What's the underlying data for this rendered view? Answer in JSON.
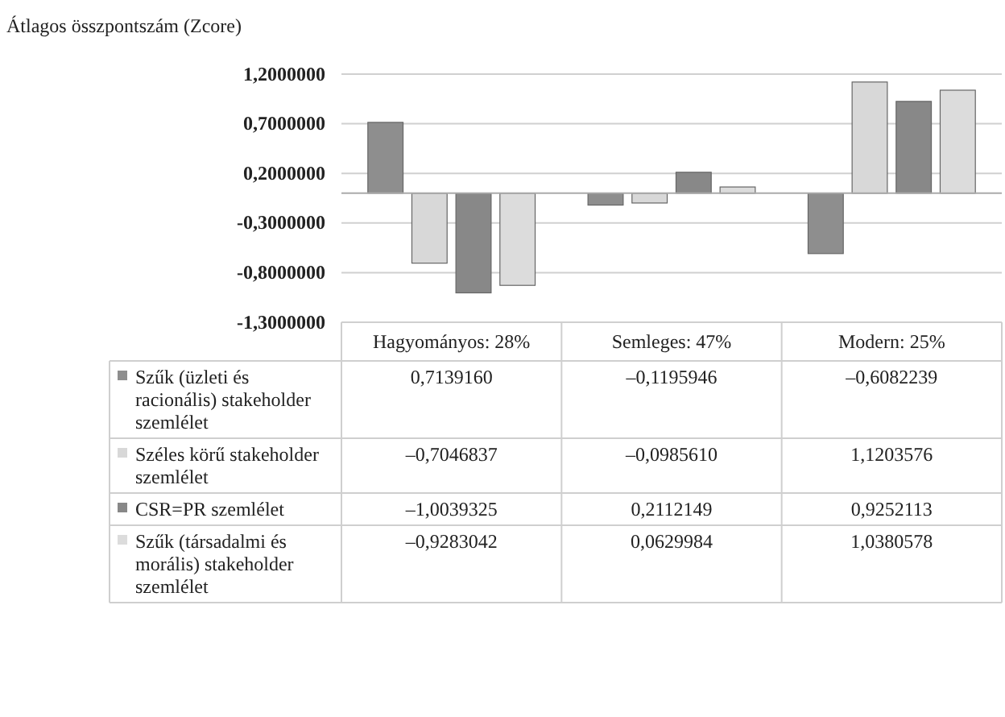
{
  "chart_data": {
    "type": "bar",
    "ylabel": "Átlagos összpontszám (Zcore)",
    "categories": [
      "Hagyományos: 28%",
      "Semleges: 47%",
      "Modern: 25%"
    ],
    "series": [
      {
        "name": "Szűk (üzleti és racionális) stakeholder szemlélet",
        "color": "#8e8e8e",
        "values": [
          0.713916,
          -0.1195946,
          -0.6082239
        ],
        "value_labels": [
          "0,7139160",
          "–0,1195946",
          "–0,6082239"
        ]
      },
      {
        "name": "Széles körű stakeholder szemlélet",
        "color": "#d8d8d8",
        "values": [
          -0.7046837,
          -0.098561,
          1.1203576
        ],
        "value_labels": [
          "–0,7046837",
          "–0,0985610",
          "1,1203576"
        ]
      },
      {
        "name": "CSR=PR szemlélet",
        "color": "#888888",
        "values": [
          -1.0039325,
          0.2112149,
          0.9252113
        ],
        "value_labels": [
          "–1,0039325",
          "0,2112149",
          "0,9252113"
        ]
      },
      {
        "name": "Szűk (társadalmi és morális) stakeholder szemlélet",
        "color": "#dcdcdc",
        "values": [
          -0.9283042,
          0.0629984,
          1.0380578
        ],
        "value_labels": [
          "–0,9283042",
          "0,0629984",
          "1,0380578"
        ]
      }
    ],
    "ylim": [
      -1.3,
      1.2
    ],
    "yticks": [
      {
        "value": 1.2,
        "label": "1,2000000"
      },
      {
        "value": 0.7,
        "label": "0,7000000"
      },
      {
        "value": 0.2,
        "label": "0,2000000"
      },
      {
        "value": -0.3,
        "label": "-0,3000000"
      },
      {
        "value": -0.8,
        "label": "-0,8000000"
      },
      {
        "value": -1.3,
        "label": "-1,3000000"
      }
    ],
    "grid": "y",
    "legend": "bottom",
    "data_labels": true
  }
}
